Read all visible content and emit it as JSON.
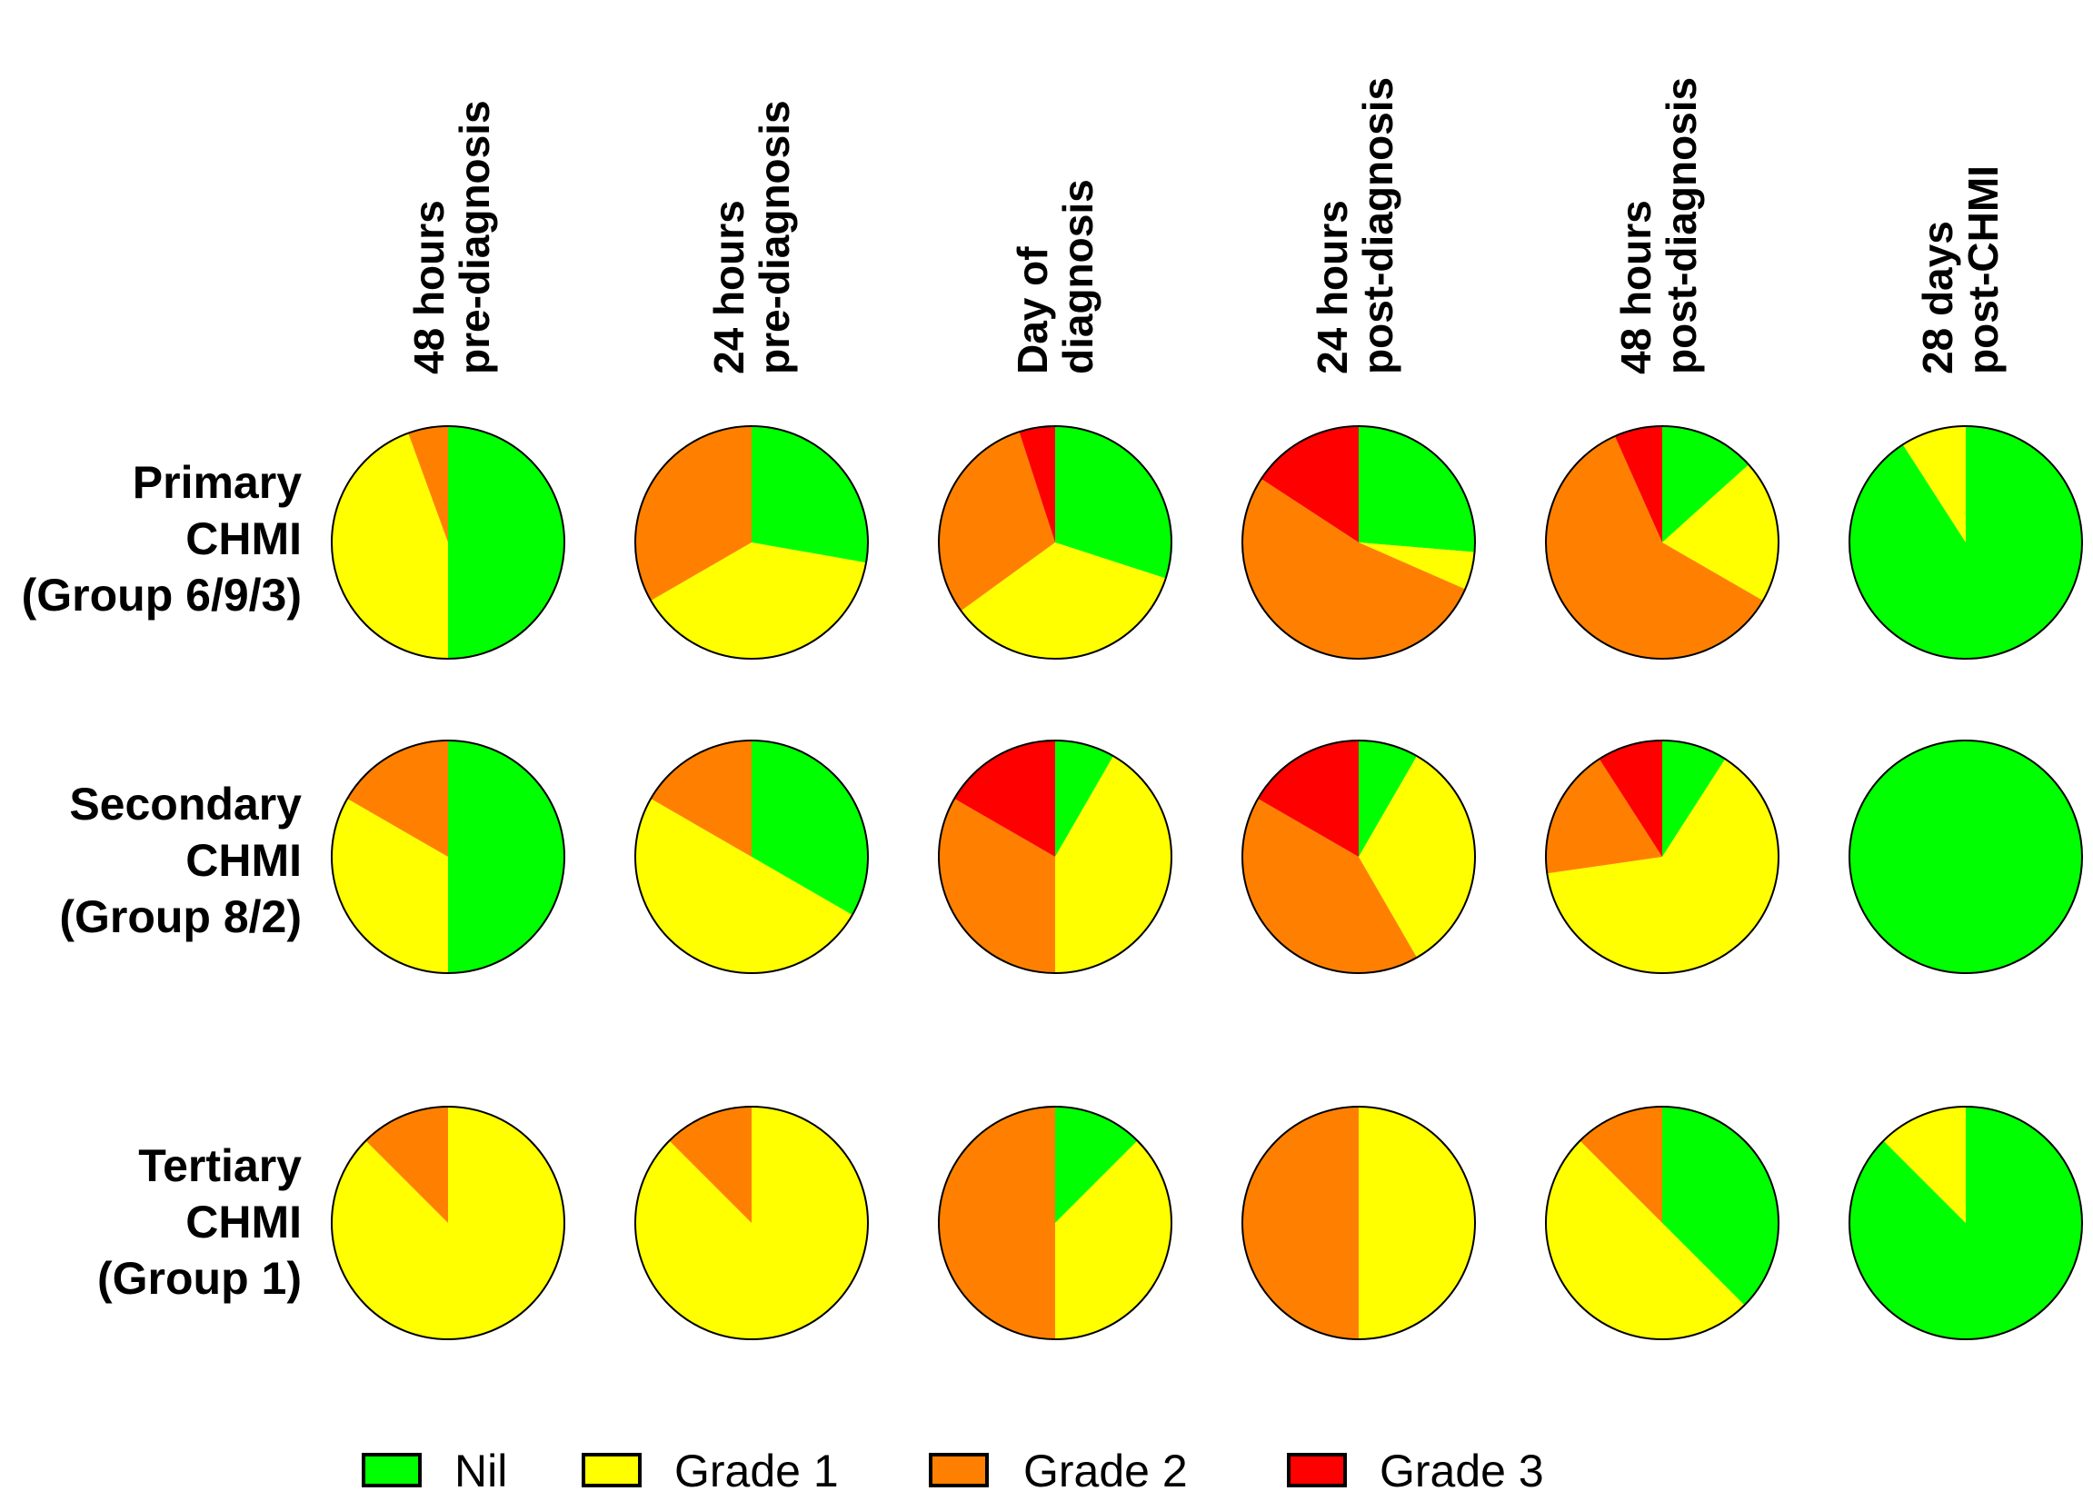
{
  "chart_data": {
    "type": "pie",
    "title": "",
    "categories": [
      "Nil",
      "Grade 1",
      "Grade 2",
      "Grade 3"
    ],
    "colors": {
      "Nil": "#00ff00",
      "Grade 1": "#ffff00",
      "Grade 2": "#ff8000",
      "Grade 3": "#ff0000"
    },
    "columns": [
      {
        "line1": "48 hours",
        "line2": "pre-diagnosis"
      },
      {
        "line1": "24 hours",
        "line2": "pre-diagnosis"
      },
      {
        "line1": "Day of",
        "line2": "diagnosis"
      },
      {
        "line1": "24 hours",
        "line2": "post-diagnosis"
      },
      {
        "line1": "48 hours",
        "line2": "post-diagnosis"
      },
      {
        "line1": "28 days",
        "line2": "post-CHMI"
      }
    ],
    "rows": [
      {
        "label": [
          "Primary",
          "CHMI",
          "(Group 6/9/3)"
        ],
        "pies": [
          {
            "Nil": 9,
            "Grade 1": 8,
            "Grade 2": 1,
            "Grade 3": 0
          },
          {
            "Nil": 5,
            "Grade 1": 7,
            "Grade 2": 6,
            "Grade 3": 0
          },
          {
            "Nil": 6,
            "Grade 1": 7,
            "Grade 2": 6,
            "Grade 3": 1
          },
          {
            "Nil": 5,
            "Grade 1": 1,
            "Grade 2": 10,
            "Grade 3": 3
          },
          {
            "Nil": 2,
            "Grade 1": 3,
            "Grade 2": 9,
            "Grade 3": 1
          },
          {
            "Nil": 10,
            "Grade 1": 1,
            "Grade 2": 0,
            "Grade 3": 0
          }
        ]
      },
      {
        "label": [
          "Secondary",
          "CHMI",
          "(Group 8/2)"
        ],
        "pies": [
          {
            "Nil": 6,
            "Grade 1": 4,
            "Grade 2": 2,
            "Grade 3": 0
          },
          {
            "Nil": 4,
            "Grade 1": 6,
            "Grade 2": 2,
            "Grade 3": 0
          },
          {
            "Nil": 1,
            "Grade 1": 5,
            "Grade 2": 4,
            "Grade 3": 2
          },
          {
            "Nil": 1,
            "Grade 1": 4,
            "Grade 2": 5,
            "Grade 3": 2
          },
          {
            "Nil": 1,
            "Grade 1": 7,
            "Grade 2": 2,
            "Grade 3": 1
          },
          {
            "Nil": 1,
            "Grade 1": 0,
            "Grade 2": 0,
            "Grade 3": 0
          }
        ]
      },
      {
        "label": [
          "Tertiary",
          "CHMI",
          "(Group 1)"
        ],
        "pies": [
          {
            "Nil": 0,
            "Grade 1": 7,
            "Grade 2": 1,
            "Grade 3": 0
          },
          {
            "Nil": 0,
            "Grade 1": 7,
            "Grade 2": 1,
            "Grade 3": 0
          },
          {
            "Nil": 1,
            "Grade 1": 3,
            "Grade 2": 4,
            "Grade 3": 0
          },
          {
            "Nil": 0,
            "Grade 1": 1,
            "Grade 2": 1,
            "Grade 3": 0
          },
          {
            "Nil": 3,
            "Grade 1": 4,
            "Grade 2": 1,
            "Grade 3": 0
          },
          {
            "Nil": 7,
            "Grade 1": 1,
            "Grade 2": 0,
            "Grade 3": 0
          }
        ]
      }
    ],
    "legend": [
      "Nil",
      "Grade 1",
      "Grade 2",
      "Grade 3"
    ],
    "legend_position": "bottom"
  }
}
